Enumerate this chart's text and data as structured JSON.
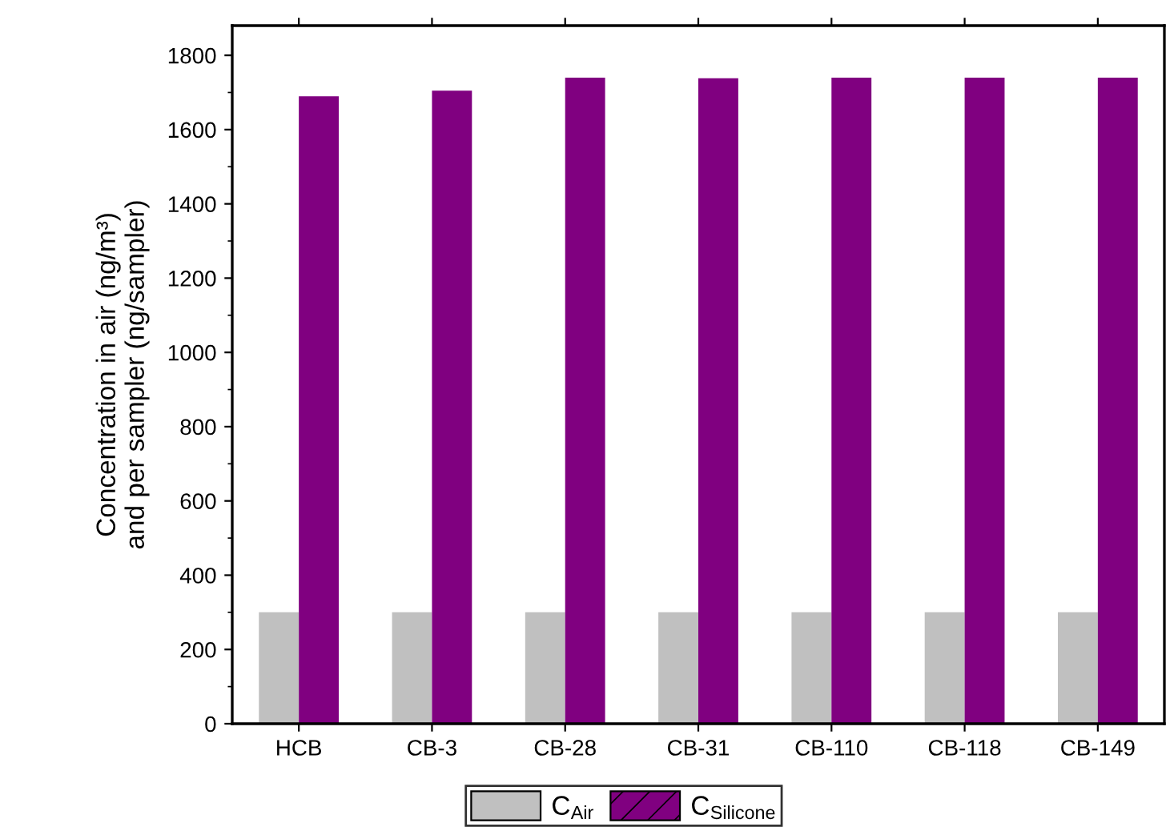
{
  "chart_data": {
    "type": "bar",
    "ylabel": "Concentration in air (ng/m³)\nand per sampler (ng/sampler)",
    "categories": [
      "HCB",
      "CB-3",
      "CB-28",
      "CB-31",
      "CB-110",
      "CB-118",
      "CB-149"
    ],
    "series": [
      {
        "name": "C$_{Air}$",
        "color": "#c0c0c0",
        "values": [
          300,
          300,
          300,
          300,
          300,
          300,
          300
        ]
      },
      {
        "name": "C$_{Silicone}$",
        "color": "#800080",
        "values": [
          1690,
          1705,
          1740,
          1738,
          1740,
          1740,
          1740
        ]
      }
    ],
    "ylim": [
      0,
      1880
    ],
    "yticks": [
      0,
      200,
      400,
      600,
      800,
      1000,
      1200,
      1400,
      1600,
      1800
    ],
    "grid": false,
    "legend": "bottom"
  }
}
